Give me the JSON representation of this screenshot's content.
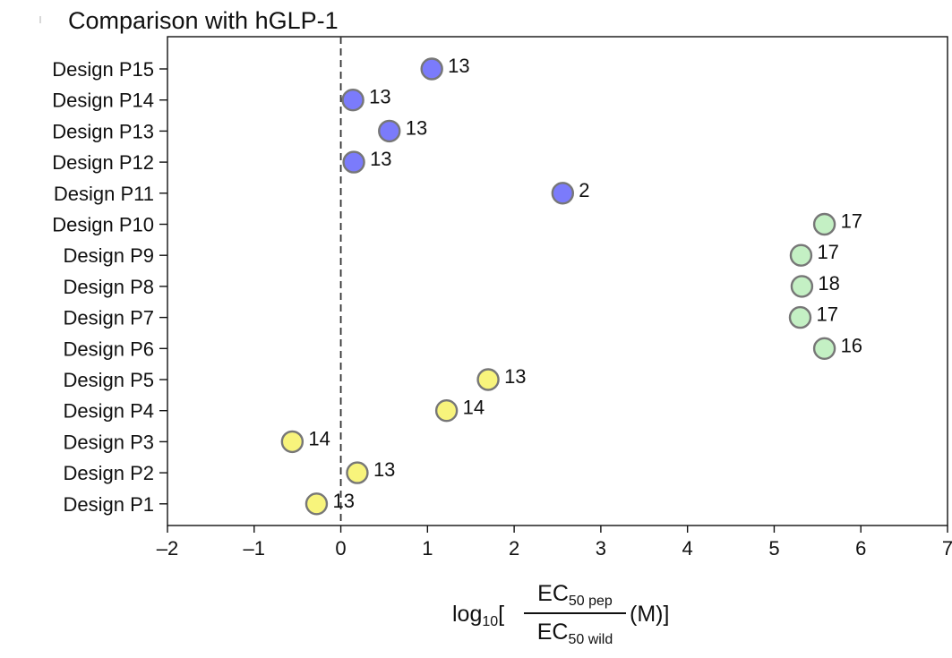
{
  "chart_data": {
    "type": "scatter",
    "title": "Comparison with hGLP-1",
    "xlim": [
      -2,
      7
    ],
    "x_ticks": [
      "–2",
      "–1",
      "0",
      "1",
      "2",
      "3",
      "4",
      "5",
      "6",
      "7"
    ],
    "reference_line": {
      "x": 0,
      "style": "dashed"
    },
    "grid": false,
    "xlabel": {
      "prefix": "log",
      "prefix_sub": "10",
      "open": "[",
      "numerator": "EC",
      "numerator_sub": "50 pep",
      "denominator": "EC",
      "denominator_sub": "50 wild",
      "unit": "(M)]"
    },
    "colors": {
      "blue": "#7b7bfb",
      "green": "#c4f0c4",
      "yellow": "#f8f47c",
      "edge": "#777777"
    },
    "points": [
      {
        "label": "Design P15",
        "x": 1.05,
        "annotation": "13",
        "color": "blue"
      },
      {
        "label": "Design P14",
        "x": 0.14,
        "annotation": "13",
        "color": "blue"
      },
      {
        "label": "Design P13",
        "x": 0.56,
        "annotation": "13",
        "color": "blue"
      },
      {
        "label": "Design P12",
        "x": 0.15,
        "annotation": "13",
        "color": "blue"
      },
      {
        "label": "Design P11",
        "x": 2.56,
        "annotation": "2",
        "color": "blue"
      },
      {
        "label": "Design P10",
        "x": 5.58,
        "annotation": "17",
        "color": "green"
      },
      {
        "label": "Design P9",
        "x": 5.31,
        "annotation": "17",
        "color": "green"
      },
      {
        "label": "Design P8",
        "x": 5.32,
        "annotation": "18",
        "color": "green"
      },
      {
        "label": "Design P7",
        "x": 5.3,
        "annotation": "17",
        "color": "green"
      },
      {
        "label": "Design P6",
        "x": 5.58,
        "annotation": "16",
        "color": "green"
      },
      {
        "label": "Design P5",
        "x": 1.7,
        "annotation": "13",
        "color": "yellow"
      },
      {
        "label": "Design P4",
        "x": 1.22,
        "annotation": "14",
        "color": "yellow"
      },
      {
        "label": "Design P3",
        "x": -0.56,
        "annotation": "14",
        "color": "yellow"
      },
      {
        "label": "Design P2",
        "x": 0.19,
        "annotation": "13",
        "color": "yellow"
      },
      {
        "label": "Design P1",
        "x": -0.28,
        "annotation": "13",
        "color": "yellow"
      }
    ]
  }
}
